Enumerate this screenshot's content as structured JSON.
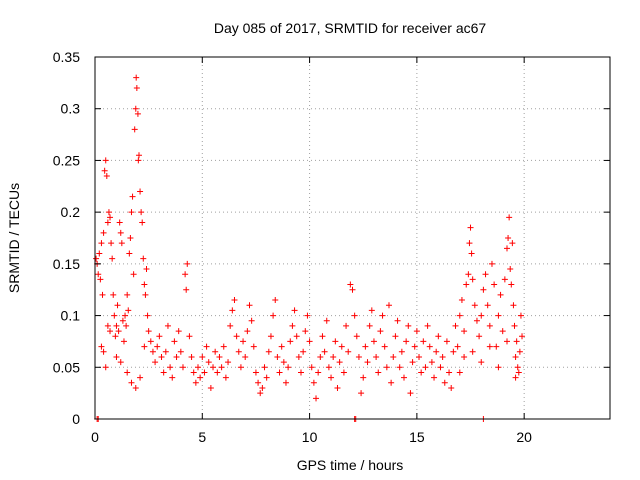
{
  "chart_data": {
    "type": "scatter",
    "title": "Day 085 of 2017, SRMTID for receiver ac67",
    "xlabel": "GPS time / hours",
    "ylabel": "SRMTID / TECUs",
    "xlim": [
      0,
      24
    ],
    "ylim": [
      0,
      0.35
    ],
    "xticks": [
      0,
      5,
      10,
      15,
      20
    ],
    "xtick_labels": [
      "0",
      "5",
      "10",
      "15",
      "20"
    ],
    "yticks": [
      0,
      0.05,
      0.1,
      0.15,
      0.2,
      0.25,
      0.3,
      0.35
    ],
    "ytick_labels": [
      "0",
      "0.05",
      "0.1",
      "0.15",
      "0.2",
      "0.25",
      "0.3",
      "0.35"
    ],
    "grid": true,
    "marker": "+",
    "color": "#ff0000",
    "series": [
      {
        "name": "SRMTID",
        "points": [
          [
            0.05,
            0.155
          ],
          [
            0.1,
            0.15
          ],
          [
            0.15,
            0.14
          ],
          [
            0.2,
            0.16
          ],
          [
            0.25,
            0.135
          ],
          [
            0.3,
            0.17
          ],
          [
            0.35,
            0.12
          ],
          [
            0.4,
            0.18
          ],
          [
            0.45,
            0.24
          ],
          [
            0.5,
            0.25
          ],
          [
            0.55,
            0.235
          ],
          [
            0.6,
            0.19
          ],
          [
            0.65,
            0.2
          ],
          [
            0.7,
            0.195
          ],
          [
            0.75,
            0.17
          ],
          [
            0.8,
            0.155
          ],
          [
            0.85,
            0.12
          ],
          [
            0.9,
            0.1
          ],
          [
            0.95,
            0.08
          ],
          [
            1.0,
            0.09
          ],
          [
            1.05,
            0.11
          ],
          [
            1.1,
            0.085
          ],
          [
            1.15,
            0.19
          ],
          [
            1.2,
            0.18
          ],
          [
            1.25,
            0.17
          ],
          [
            1.3,
            0.095
          ],
          [
            1.35,
            0.075
          ],
          [
            1.4,
            0.1
          ],
          [
            1.45,
            0.09
          ],
          [
            1.5,
            0.12
          ],
          [
            1.55,
            0.105
          ],
          [
            1.6,
            0.16
          ],
          [
            1.65,
            0.175
          ],
          [
            1.7,
            0.2
          ],
          [
            1.75,
            0.215
          ],
          [
            1.8,
            0.14
          ],
          [
            1.85,
            0.28
          ],
          [
            1.9,
            0.3
          ],
          [
            1.92,
            0.33
          ],
          [
            1.95,
            0.32
          ],
          [
            2.0,
            0.295
          ],
          [
            2.02,
            0.25
          ],
          [
            2.05,
            0.255
          ],
          [
            2.1,
            0.22
          ],
          [
            2.15,
            0.2
          ],
          [
            2.2,
            0.19
          ],
          [
            2.25,
            0.155
          ],
          [
            2.3,
            0.13
          ],
          [
            2.35,
            0.12
          ],
          [
            2.4,
            0.145
          ],
          [
            2.45,
            0.1
          ],
          [
            2.5,
            0.085
          ],
          [
            0.3,
            0.07
          ],
          [
            0.4,
            0.065
          ],
          [
            0.5,
            0.05
          ],
          [
            0.6,
            0.09
          ],
          [
            0.7,
            0.085
          ],
          [
            1.0,
            0.06
          ],
          [
            1.2,
            0.055
          ],
          [
            1.5,
            0.045
          ],
          [
            1.7,
            0.035
          ],
          [
            1.9,
            0.03
          ],
          [
            2.1,
            0.04
          ],
          [
            2.3,
            0.07
          ],
          [
            2.6,
            0.075
          ],
          [
            2.7,
            0.065
          ],
          [
            2.8,
            0.055
          ],
          [
            2.9,
            0.07
          ],
          [
            3.0,
            0.08
          ],
          [
            3.1,
            0.06
          ],
          [
            3.2,
            0.045
          ],
          [
            3.3,
            0.065
          ],
          [
            3.4,
            0.09
          ],
          [
            3.5,
            0.05
          ],
          [
            3.6,
            0.04
          ],
          [
            3.7,
            0.075
          ],
          [
            3.8,
            0.06
          ],
          [
            3.9,
            0.085
          ],
          [
            4.0,
            0.065
          ],
          [
            4.1,
            0.05
          ],
          [
            4.2,
            0.14
          ],
          [
            4.25,
            0.125
          ],
          [
            4.3,
            0.15
          ],
          [
            4.4,
            0.08
          ],
          [
            4.5,
            0.06
          ],
          [
            4.6,
            0.045
          ],
          [
            4.7,
            0.035
          ],
          [
            4.8,
            0.05
          ],
          [
            4.9,
            0.04
          ],
          [
            5.0,
            0.06
          ],
          [
            5.1,
            0.045
          ],
          [
            5.2,
            0.07
          ],
          [
            5.3,
            0.055
          ],
          [
            5.4,
            0.03
          ],
          [
            5.5,
            0.05
          ],
          [
            5.6,
            0.065
          ],
          [
            5.7,
            0.045
          ],
          [
            5.8,
            0.06
          ],
          [
            5.9,
            0.05
          ],
          [
            6.0,
            0.07
          ],
          [
            6.1,
            0.04
          ],
          [
            6.2,
            0.055
          ],
          [
            6.3,
            0.09
          ],
          [
            6.4,
            0.105
          ],
          [
            6.5,
            0.115
          ],
          [
            6.6,
            0.08
          ],
          [
            6.7,
            0.065
          ],
          [
            6.8,
            0.05
          ],
          [
            6.9,
            0.075
          ],
          [
            7.0,
            0.06
          ],
          [
            7.1,
            0.085
          ],
          [
            7.2,
            0.11
          ],
          [
            7.3,
            0.095
          ],
          [
            7.4,
            0.07
          ],
          [
            7.5,
            0.045
          ],
          [
            7.6,
            0.035
          ],
          [
            7.7,
            0.025
          ],
          [
            7.8,
            0.03
          ],
          [
            7.9,
            0.05
          ],
          [
            8.0,
            0.04
          ],
          [
            8.1,
            0.065
          ],
          [
            8.2,
            0.08
          ],
          [
            8.3,
            0.1
          ],
          [
            8.4,
            0.115
          ],
          [
            8.5,
            0.06
          ],
          [
            8.6,
            0.045
          ],
          [
            8.7,
            0.07
          ],
          [
            8.8,
            0.055
          ],
          [
            8.9,
            0.035
          ],
          [
            9.0,
            0.05
          ],
          [
            9.1,
            0.075
          ],
          [
            9.2,
            0.09
          ],
          [
            9.3,
            0.105
          ],
          [
            9.4,
            0.08
          ],
          [
            9.5,
            0.06
          ],
          [
            9.6,
            0.045
          ],
          [
            9.7,
            0.065
          ],
          [
            9.8,
            0.085
          ],
          [
            9.9,
            0.1
          ],
          [
            10.0,
            0.075
          ],
          [
            10.1,
            0.05
          ],
          [
            10.2,
            0.035
          ],
          [
            10.3,
            0.02
          ],
          [
            10.4,
            0.045
          ],
          [
            10.5,
            0.06
          ],
          [
            10.6,
            0.08
          ],
          [
            10.7,
            0.065
          ],
          [
            10.8,
            0.095
          ],
          [
            10.9,
            0.05
          ],
          [
            11.0,
            0.04
          ],
          [
            11.1,
            0.06
          ],
          [
            11.2,
            0.075
          ],
          [
            11.3,
            0.03
          ],
          [
            11.4,
            0.055
          ],
          [
            11.5,
            0.07
          ],
          [
            11.6,
            0.045
          ],
          [
            11.7,
            0.09
          ],
          [
            11.8,
            0.065
          ],
          [
            11.9,
            0.13
          ],
          [
            12.0,
            0.125
          ],
          [
            12.1,
            0.1
          ],
          [
            12.2,
            0.08
          ],
          [
            12.3,
            0.06
          ],
          [
            12.4,
            0.025
          ],
          [
            12.5,
            0.04
          ],
          [
            12.6,
            0.07
          ],
          [
            12.7,
            0.055
          ],
          [
            12.8,
            0.09
          ],
          [
            12.9,
            0.105
          ],
          [
            13.0,
            0.075
          ],
          [
            13.1,
            0.06
          ],
          [
            13.2,
            0.045
          ],
          [
            13.3,
            0.085
          ],
          [
            13.4,
            0.1
          ],
          [
            13.5,
            0.07
          ],
          [
            13.6,
            0.05
          ],
          [
            13.7,
            0.11
          ],
          [
            13.8,
            0.035
          ],
          [
            13.9,
            0.06
          ],
          [
            14.0,
            0.08
          ],
          [
            14.1,
            0.095
          ],
          [
            14.2,
            0.05
          ],
          [
            14.3,
            0.065
          ],
          [
            14.4,
            0.04
          ],
          [
            14.5,
            0.075
          ],
          [
            14.6,
            0.09
          ],
          [
            14.7,
            0.025
          ],
          [
            14.8,
            0.055
          ],
          [
            14.9,
            0.07
          ],
          [
            15.0,
            0.085
          ],
          [
            15.1,
            0.06
          ],
          [
            15.2,
            0.045
          ],
          [
            15.3,
            0.075
          ],
          [
            15.4,
            0.05
          ],
          [
            15.5,
            0.09
          ],
          [
            15.6,
            0.07
          ],
          [
            15.7,
            0.055
          ],
          [
            15.8,
            0.04
          ],
          [
            15.9,
            0.065
          ],
          [
            16.0,
            0.08
          ],
          [
            16.1,
            0.05
          ],
          [
            16.2,
            0.06
          ],
          [
            16.3,
            0.035
          ],
          [
            16.4,
            0.075
          ],
          [
            16.5,
            0.045
          ],
          [
            16.6,
            0.03
          ],
          [
            16.7,
            0.065
          ],
          [
            16.8,
            0.09
          ],
          [
            16.9,
            0.07
          ],
          [
            17.0,
            0.1
          ],
          [
            17.1,
            0.115
          ],
          [
            17.2,
            0.085
          ],
          [
            17.3,
            0.13
          ],
          [
            17.4,
            0.14
          ],
          [
            17.45,
            0.17
          ],
          [
            17.5,
            0.185
          ],
          [
            17.55,
            0.16
          ],
          [
            17.6,
            0.135
          ],
          [
            17.7,
            0.11
          ],
          [
            17.8,
            0.095
          ],
          [
            17.9,
            0.08
          ],
          [
            18.0,
            0.1
          ],
          [
            18.1,
            0.125
          ],
          [
            18.2,
            0.14
          ],
          [
            18.3,
            0.11
          ],
          [
            18.4,
            0.09
          ],
          [
            18.5,
            0.15
          ],
          [
            18.6,
            0.13
          ],
          [
            18.7,
            0.07
          ],
          [
            18.8,
            0.1
          ],
          [
            18.9,
            0.12
          ],
          [
            19.0,
            0.085
          ],
          [
            19.1,
            0.135
          ],
          [
            19.2,
            0.165
          ],
          [
            19.25,
            0.175
          ],
          [
            19.3,
            0.195
          ],
          [
            19.35,
            0.145
          ],
          [
            19.4,
            0.13
          ],
          [
            19.45,
            0.17
          ],
          [
            19.5,
            0.11
          ],
          [
            19.55,
            0.09
          ],
          [
            19.6,
            0.06
          ],
          [
            19.65,
            0.075
          ],
          [
            19.7,
            0.05
          ],
          [
            19.75,
            0.045
          ],
          [
            19.8,
            0.065
          ],
          [
            19.85,
            0.1
          ],
          [
            19.9,
            0.08
          ],
          [
            17.2,
            0.06
          ],
          [
            17.6,
            0.065
          ],
          [
            18.0,
            0.055
          ],
          [
            18.4,
            0.07
          ],
          [
            18.8,
            0.05
          ],
          [
            19.2,
            0.075
          ],
          [
            19.6,
            0.04
          ],
          [
            17.0,
            0.045
          ],
          [
            0.1,
            0.0
          ],
          [
            0.15,
            0.0
          ],
          [
            12.1,
            0.0
          ],
          [
            12.15,
            0.0
          ],
          [
            18.1,
            0.0
          ]
        ]
      }
    ]
  }
}
